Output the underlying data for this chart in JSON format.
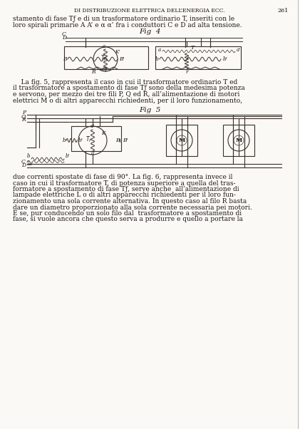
{
  "bg_color": "#faf9f6",
  "text_color": "#1a1410",
  "line_color": "#3a3028",
  "header_text": "DI DISTRIBUZIONE ELETTRICA DELL’ENERGIA ECC.",
  "page_num": "261",
  "line1": "stamento di fase Tƒ e di un trasformatore ordinario T, inseriti con le",
  "line2": "loro spirali primarie A A’ e α α’ fra i conduttori C e D ad alta tensione.",
  "fig4_label": "Fig  4",
  "fig5_label": "Fig  5",
  "para1_line1": "    La fig. 5, rappresenta il caso in cui il trasformatore ordinario T ed",
  "para1_line2": "il trasformatore a spostamento di fase Tƒ sono della medesima potenza",
  "para1_line3": "e servono, per mezzo dei tre fili P, Q ed R, all’alimentazione di motori",
  "para1_line4": "elettrici M o di altri apparecchi richiedenti, per il loro funzionamento,",
  "para2_line1": "due correnti spostate di fase di 90°. La fig. 6, rappresenta invece il",
  "para2_line2": "caso in cui il trasformatore T, di potenza superiore a quella del tras-",
  "para2_line3": "formatore a spostamento di fase Tƒ, serve anche  all’alimentazione di",
  "para2_line4": "lampade elettriche L o di altri apparecchi richiedenti per il loro fun-",
  "para2_line5": "zionamento una sola corrente alternativa. In questo caso al filo R basta",
  "para2_line6": "dare un diametro proporzionato alla sola corrente necessaria pei motori.",
  "para2_line7": "E se, pur conducendo un solo filo dal  trasformatore a spostamento di",
  "para2_line8": "fase, si vuole ancora che questo serva a produrre e quello a portare la"
}
